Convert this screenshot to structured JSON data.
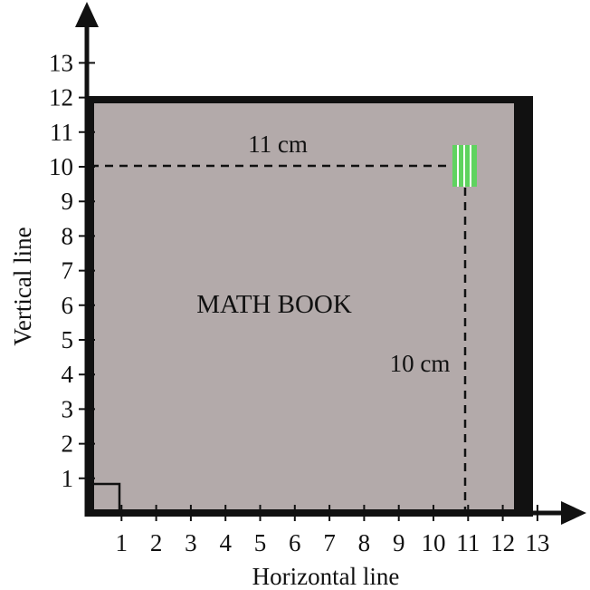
{
  "diagram": {
    "book_title": "MATH BOOK",
    "x_axis_title": "Horizontal line",
    "y_axis_title": "Vertical line",
    "width_label": "11 cm",
    "height_label": "10 cm",
    "x_ticks": [
      "1",
      "2",
      "3",
      "4",
      "5",
      "6",
      "7",
      "8",
      "9",
      "10",
      "11",
      "12",
      "13"
    ],
    "y_ticks": [
      "1",
      "2",
      "3",
      "4",
      "5",
      "6",
      "7",
      "8",
      "9",
      "10",
      "11",
      "12",
      "13"
    ],
    "book_extent": {
      "x_max": 13,
      "y_max": 12
    },
    "marked_point": {
      "x": 11,
      "y": 10
    },
    "colors": {
      "book_fill": "#b3aaaa",
      "book_border": "#111111",
      "marker": "#5fd35f",
      "axis": "#111111"
    }
  }
}
